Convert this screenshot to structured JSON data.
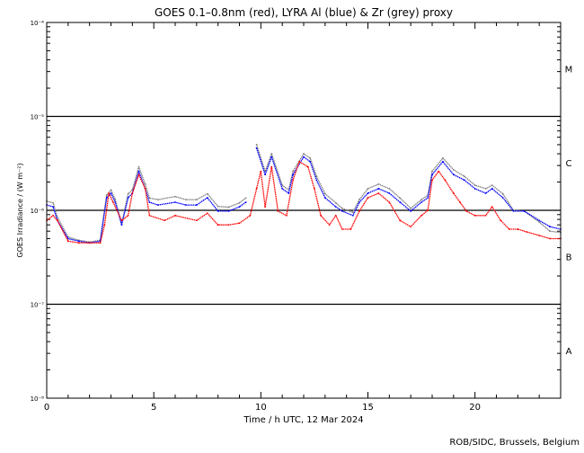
{
  "chart_data": {
    "type": "line",
    "title": "GOES 0.1–0.8nm (red), LYRA Al (blue) & Zr (grey) proxy",
    "xlabel": "Time / h UTC, 12 Mar 2024",
    "ylabel": "GOES Irradiance / (W m⁻²)",
    "yscale": "log",
    "xlim": [
      0,
      24
    ],
    "ylim": [
      1e-08,
      0.0001
    ],
    "x_ticks": [
      0,
      5,
      10,
      15,
      20
    ],
    "y_ticks": [
      {
        "value": 0.0001,
        "label": "10⁻⁴"
      },
      {
        "value": 1e-05,
        "label": "10⁻⁵"
      },
      {
        "value": 1e-06,
        "label": "10⁻⁶"
      },
      {
        "value": 1e-07,
        "label": "10⁻⁷"
      },
      {
        "value": 1e-08,
        "label": "10⁻⁸"
      }
    ],
    "reference_lines": [
      1e-05,
      1e-06,
      1e-07
    ],
    "flare_classes": [
      {
        "label": "M",
        "value": 3.2e-05
      },
      {
        "label": "C",
        "value": 3.2e-06
      },
      {
        "label": "B",
        "value": 3.2e-07
      },
      {
        "label": "A",
        "value": 3.2e-08
      }
    ],
    "series": [
      {
        "name": "LYRA Zr proxy",
        "color": "#808080",
        "x": [
          0,
          0.3,
          0.5,
          1.0,
          1.5,
          2.0,
          2.5,
          2.8,
          3.0,
          3.2,
          3.5,
          3.8,
          4.0,
          4.3,
          4.6,
          4.8,
          5.2,
          6.0,
          6.5,
          7.0,
          7.5,
          8.0,
          8.5,
          9.0,
          9.3,
          null,
          9.8,
          10.2,
          10.5,
          11.0,
          11.3,
          11.5,
          12.0,
          12.3,
          12.6,
          13.0,
          13.5,
          13.8,
          14.3,
          14.6,
          15.0,
          15.5,
          16.0,
          16.5,
          17.0,
          17.5,
          17.8,
          18.0,
          18.5,
          19.0,
          19.5,
          20.0,
          20.5,
          20.8,
          21.3,
          21.8,
          22.3,
          23.0,
          23.5,
          24.0
        ],
        "y": [
          1.25e-06,
          1.2e-06,
          8.5e-07,
          5.2e-07,
          4.8e-07,
          4.6e-07,
          4.8e-07,
          1.45e-06,
          1.65e-06,
          1.3e-06,
          7.2e-07,
          1.5e-06,
          1.65e-06,
          2.9e-06,
          1.9e-06,
          1.35e-06,
          1.3e-06,
          1.4e-06,
          1.3e-06,
          1.3e-06,
          1.5e-06,
          1.1e-06,
          1.08e-06,
          1.2e-06,
          1.35e-06,
          null,
          5e-06,
          2.6e-06,
          4e-06,
          1.85e-06,
          1.65e-06,
          2.6e-06,
          4e-06,
          3.6e-06,
          2.3e-06,
          1.5e-06,
          1.2e-06,
          1.05e-06,
          9.5e-07,
          1.3e-06,
          1.7e-06,
          1.9e-06,
          1.7e-06,
          1.35e-06,
          1.05e-06,
          1.3e-06,
          1.45e-06,
          2.6e-06,
          3.6e-06,
          2.7e-06,
          2.3e-06,
          1.85e-06,
          1.7e-06,
          1.85e-06,
          1.5e-06,
          1e-06,
          9.8e-07,
          7.5e-07,
          6e-07,
          5.8e-07
        ]
      },
      {
        "name": "LYRA Al proxy",
        "color": "#0000ff",
        "x": [
          0,
          0.3,
          0.5,
          1.0,
          1.5,
          2.0,
          2.5,
          2.8,
          3.0,
          3.2,
          3.5,
          3.8,
          4.0,
          4.3,
          4.6,
          4.8,
          5.2,
          6.0,
          6.5,
          7.0,
          7.5,
          8.0,
          8.5,
          9.0,
          9.3,
          null,
          9.8,
          10.2,
          10.5,
          11.0,
          11.3,
          11.5,
          12.0,
          12.3,
          12.6,
          13.0,
          13.5,
          13.8,
          14.3,
          14.6,
          15.0,
          15.5,
          16.0,
          16.5,
          17.0,
          17.5,
          17.8,
          18.0,
          18.5,
          19.0,
          19.5,
          20.0,
          20.5,
          20.8,
          21.3,
          21.8,
          22.3,
          23.0,
          23.5,
          24.0
        ],
        "y": [
          1.14e-06,
          1.09e-06,
          7.8e-07,
          5e-07,
          4.7e-07,
          4.5e-07,
          4.7e-07,
          1.36e-06,
          1.52e-06,
          1.22e-06,
          7e-07,
          1.36e-06,
          1.52e-06,
          2.6e-06,
          1.7e-06,
          1.22e-06,
          1.14e-06,
          1.22e-06,
          1.14e-06,
          1.14e-06,
          1.36e-06,
          9.8e-07,
          9.8e-07,
          1.09e-06,
          1.22e-06,
          null,
          4.6e-06,
          2.4e-06,
          3.7e-06,
          1.7e-06,
          1.52e-06,
          2.4e-06,
          3.7e-06,
          3.3e-06,
          2.1e-06,
          1.36e-06,
          1.09e-06,
          9.8e-07,
          8.8e-07,
          1.22e-06,
          1.52e-06,
          1.7e-06,
          1.52e-06,
          1.22e-06,
          9.8e-07,
          1.22e-06,
          1.36e-06,
          2.4e-06,
          3.3e-06,
          2.4e-06,
          2.1e-06,
          1.7e-06,
          1.52e-06,
          1.7e-06,
          1.36e-06,
          9.8e-07,
          9.8e-07,
          7.8e-07,
          6.7e-07,
          6.3e-07
        ]
      },
      {
        "name": "GOES 0.1-0.8nm",
        "color": "#ff0000",
        "x": [
          0,
          0.3,
          0.5,
          1.0,
          1.5,
          2.0,
          2.5,
          2.7,
          2.9,
          3.1,
          3.5,
          3.8,
          4.0,
          4.3,
          4.6,
          4.8,
          5.5,
          6.0,
          7.0,
          7.5,
          8.0,
          8.5,
          9.0,
          9.5,
          9.8,
          10.0,
          10.2,
          10.5,
          10.8,
          11.2,
          11.5,
          11.8,
          12.2,
          12.5,
          12.8,
          13.2,
          13.5,
          13.8,
          14.2,
          14.6,
          15.0,
          15.5,
          16.0,
          16.5,
          17.0,
          17.5,
          17.8,
          18.0,
          18.3,
          18.6,
          19.0,
          19.3,
          19.6,
          20.0,
          20.5,
          20.8,
          21.2,
          21.6,
          22.0,
          22.4,
          23.0,
          23.5,
          24.0
        ],
        "y": [
          7.8e-07,
          8.8e-07,
          7.8e-07,
          4.7e-07,
          4.5e-07,
          4.5e-07,
          4.5e-07,
          7e-07,
          1.52e-06,
          1.22e-06,
          7.8e-07,
          8.8e-07,
          1.52e-06,
          2.4e-06,
          1.7e-06,
          8.8e-07,
          7.8e-07,
          8.8e-07,
          7.8e-07,
          9.3e-07,
          7e-07,
          7e-07,
          7.3e-07,
          8.8e-07,
          1.7e-06,
          2.6e-06,
          1.09e-06,
          2.9e-06,
          9.8e-07,
          8.8e-07,
          2.1e-06,
          3.3e-06,
          2.9e-06,
          1.7e-06,
          8.8e-07,
          7e-07,
          8.8e-07,
          6.3e-07,
          6.3e-07,
          9.8e-07,
          1.36e-06,
          1.52e-06,
          1.22e-06,
          7.8e-07,
          6.7e-07,
          8.8e-07,
          1e-06,
          2.1e-06,
          2.6e-06,
          2.1e-06,
          1.52e-06,
          1.22e-06,
          9.8e-07,
          8.8e-07,
          8.8e-07,
          1.09e-06,
          7.8e-07,
          6.3e-07,
          6.3e-07,
          5.9e-07,
          5.4e-07,
          5e-07,
          5e-07
        ]
      }
    ],
    "grid": false,
    "legend": "none (colors named in title)"
  },
  "footer": {
    "credit": "ROB/SIDC, Brussels, Belgium"
  }
}
